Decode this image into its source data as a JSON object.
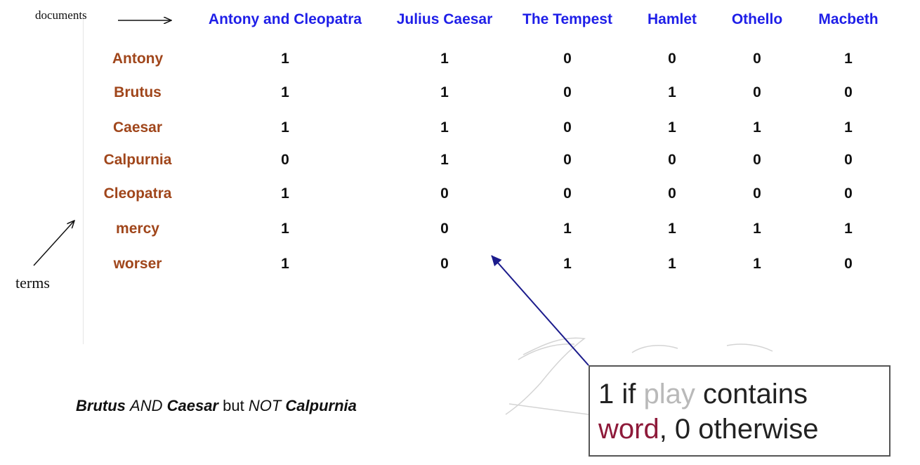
{
  "labels": {
    "documents": "documents",
    "terms": "terms"
  },
  "documents": [
    "Antony and Cleopatra",
    "Julius Caesar",
    "The Tempest",
    "Hamlet",
    "Othello",
    "Macbeth"
  ],
  "matrix": [
    {
      "term": "Antony",
      "values": [
        "1",
        "1",
        "0",
        "0",
        "0",
        "1"
      ]
    },
    {
      "term": "Brutus",
      "values": [
        "1",
        "1",
        "0",
        "1",
        "0",
        "0"
      ]
    },
    {
      "term": "Caesar",
      "values": [
        "1",
        "1",
        "0",
        "1",
        "1",
        "1"
      ]
    },
    {
      "term": "Calpurnia",
      "values": [
        "0",
        "1",
        "0",
        "0",
        "0",
        "0"
      ]
    },
    {
      "term": "Cleopatra",
      "values": [
        "1",
        "0",
        "0",
        "0",
        "0",
        "0"
      ]
    },
    {
      "term": "mercy",
      "values": [
        "1",
        "0",
        "1",
        "1",
        "1",
        "1"
      ]
    },
    {
      "term": "worser",
      "values": [
        "1",
        "0",
        "1",
        "1",
        "1",
        "0"
      ]
    }
  ],
  "query": {
    "t1": "Brutus",
    "op1": "AND",
    "t2": "Caesar",
    "mid": "but",
    "op2": "NOT",
    "t3": "Calpurnia"
  },
  "callout": {
    "w1": "1 if",
    "w2": "play",
    "w3": "contains",
    "w4": "word",
    "w5": ", 0 otherwise"
  },
  "colors": {
    "documents": "#1f1fe8",
    "terms": "#a0461b",
    "arrow": "#1b1b8c",
    "callout_accent": "#8e1a3a",
    "callout_light": "#b9b9b9"
  }
}
